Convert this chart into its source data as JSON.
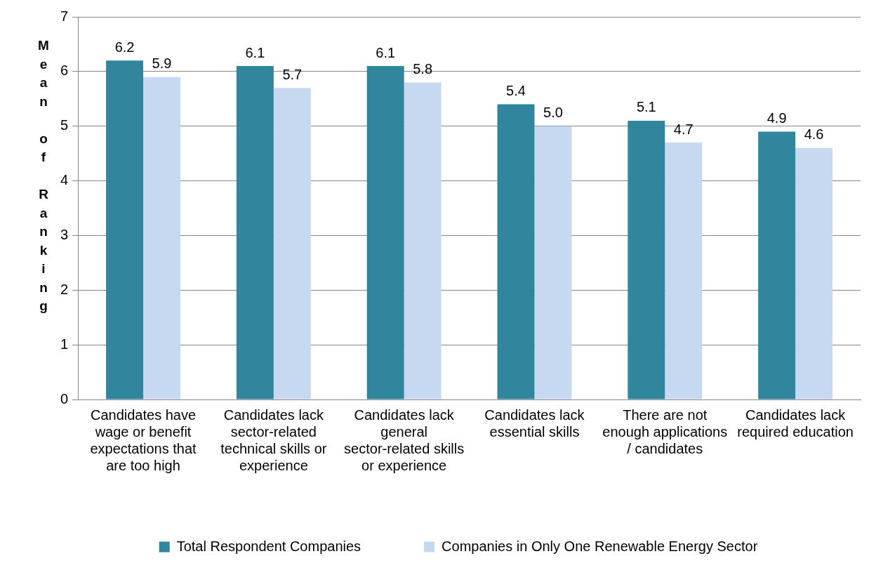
{
  "chart_data": {
    "type": "bar",
    "ylabel": "Mean of Ranking",
    "categories": [
      "Candidates have wage or benefit expectations that are too high",
      "Candidates lack sector-related technical skills or experience",
      "Candidates lack general sector-related skills or experience",
      "Candidates lack essential skills",
      "There are not enough applications / candidates",
      "Candidates lack required education"
    ],
    "series": [
      {
        "name": "Total Respondent Companies",
        "color": "#31859c",
        "values": [
          6.2,
          6.1,
          6.1,
          5.4,
          5.1,
          4.9
        ],
        "value_labels": [
          "6.2",
          "6.1",
          "6.1",
          "5.4",
          "5.1",
          "4.9"
        ]
      },
      {
        "name": "Companies in Only One Renewable Energy Sector",
        "color": "#c6d9f1",
        "values": [
          5.9,
          5.7,
          5.8,
          5.0,
          4.7,
          4.6
        ],
        "value_labels": [
          "5.9",
          "5.7",
          "5.8",
          "5.0",
          "4.7",
          "4.6"
        ]
      }
    ],
    "ylim": [
      0,
      7
    ],
    "yticks": [
      0,
      1,
      2,
      3,
      4,
      5,
      6,
      7
    ],
    "grid": "y",
    "legend": "bottom"
  }
}
